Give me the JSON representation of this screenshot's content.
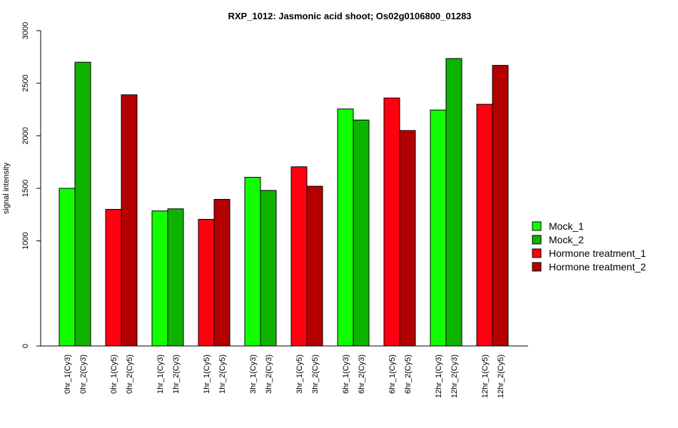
{
  "chart_data": {
    "type": "bar",
    "title": "RXP_1012: Jasmonic acid shoot; Os02g0106800_01283",
    "ylabel": "signal intensity",
    "xlabel": "",
    "ylim": [
      0,
      3000
    ],
    "yticks": [
      0,
      1000,
      1500,
      2000,
      2500,
      3000
    ],
    "legend_position": "right",
    "grid": false,
    "categories": [
      "0hr_1(Cy3)",
      "0hr_2(Cy3)",
      "0hr_1(Cy5)",
      "0hr_2(Cy5)",
      "1hr_1(Cy3)",
      "1hr_2(Cy3)",
      "1hr_1(Cy5)",
      "1hr_2(Cy5)",
      "3hr_1(Cy3)",
      "3hr_2(Cy3)",
      "3hr_1(Cy5)",
      "3hr_2(Cy5)",
      "6hr_1(Cy3)",
      "6hr_2(Cy3)",
      "6hr_1(Cy5)",
      "6hr_2(Cy5)",
      "12hr_1(Cy3)",
      "12hr_2(Cy3)",
      "12hr_1(Cy5)",
      "12hr_2(Cy5)"
    ],
    "values": [
      1500,
      2700,
      1300,
      2390,
      1285,
      1305,
      1205,
      1395,
      1605,
      1480,
      1705,
      1520,
      2255,
      2150,
      2360,
      2050,
      2245,
      2735,
      2300,
      2670
    ],
    "series_index": [
      0,
      1,
      2,
      3,
      0,
      1,
      2,
      3,
      0,
      1,
      2,
      3,
      0,
      1,
      2,
      3,
      0,
      1,
      2,
      3
    ],
    "series": [
      {
        "name": "Mock_1",
        "color": "#11ff00"
      },
      {
        "name": "Mock_2",
        "color": "#0eb300"
      },
      {
        "name": "Hormone treatment_1",
        "color": "#ff0010"
      },
      {
        "name": "Hormone treatment_2",
        "color": "#b30000"
      }
    ]
  }
}
